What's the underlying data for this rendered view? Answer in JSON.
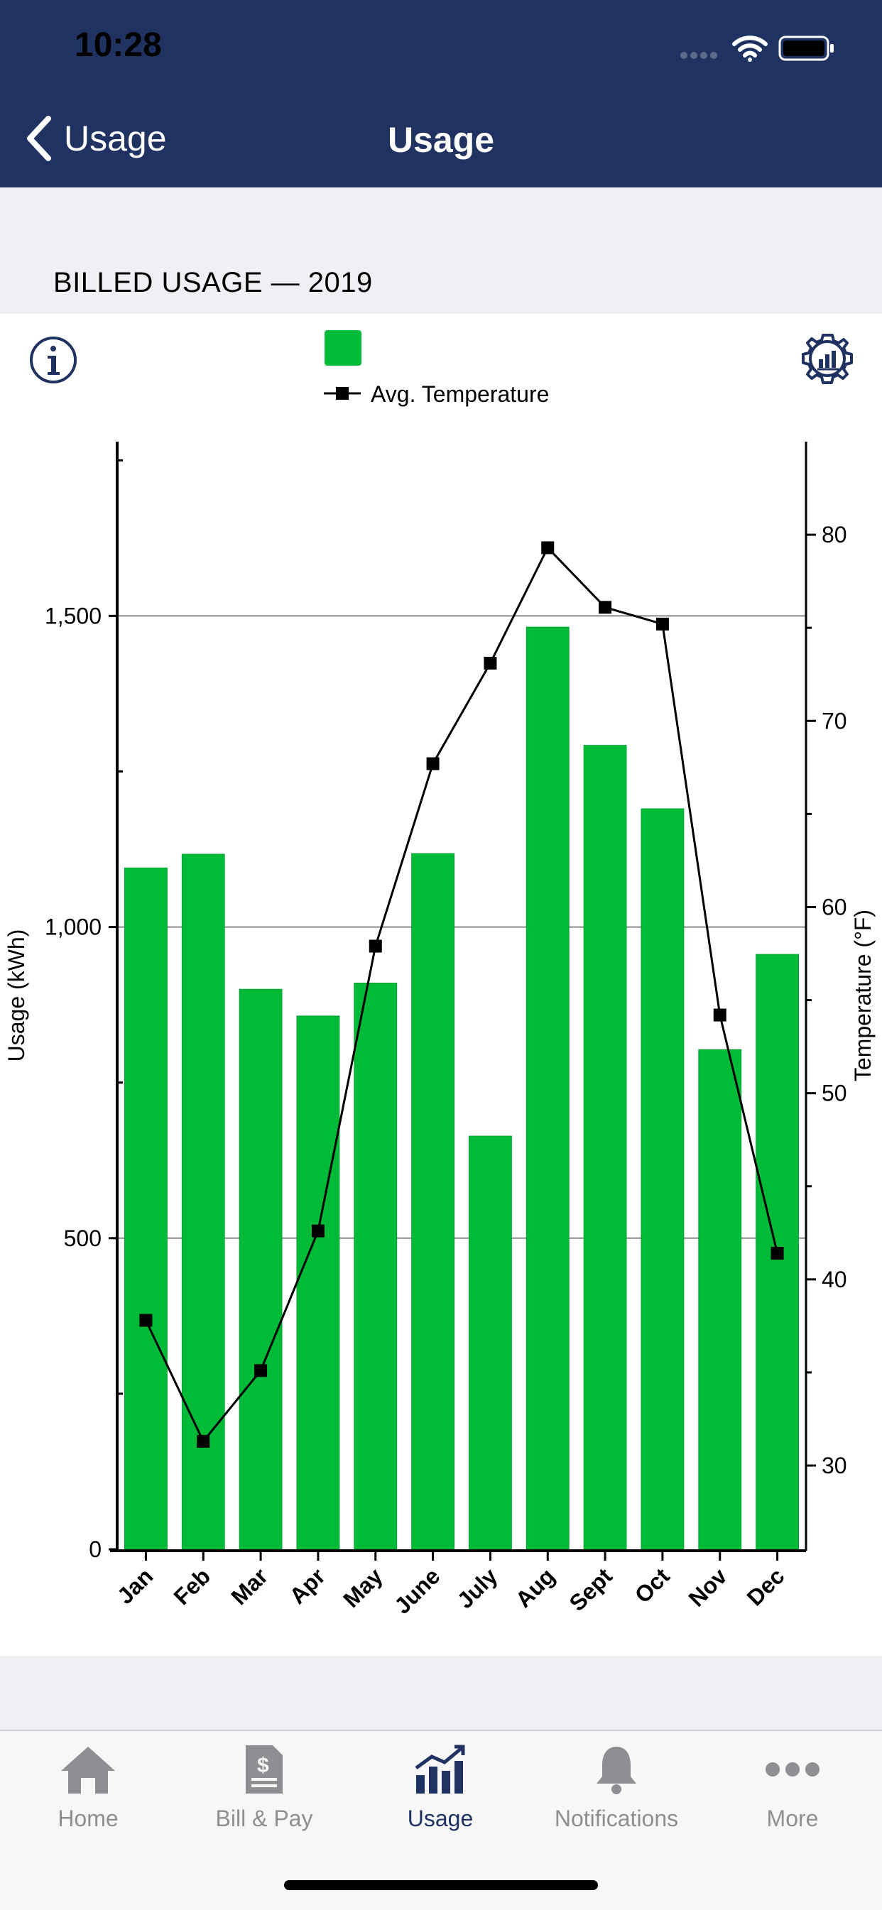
{
  "status_bar": {
    "time": "10:28"
  },
  "nav": {
    "back_label": "Usage",
    "title": "Usage"
  },
  "section": {
    "label": "BILLED USAGE — 2019"
  },
  "legend": {
    "swatch_label": "",
    "line_label": "Avg. Temperature"
  },
  "colors": {
    "header": "#1f3262",
    "bar": "#00bb38",
    "active_tab": "#1f3262",
    "inactive_tab": "#8e8e93"
  },
  "chart_data": {
    "type": "bar",
    "categories": [
      "Jan",
      "Feb",
      "Mar",
      "Apr",
      "May",
      "June",
      "July",
      "Aug",
      "Sept",
      "Oct",
      "Nov",
      "Dec"
    ],
    "series": [
      {
        "type": "bar",
        "axis": "left",
        "values": [
          1095,
          1117,
          900,
          857,
          910,
          1118,
          664,
          1482,
          1292,
          1190,
          803,
          956
        ]
      },
      {
        "name": "Avg. Temperature",
        "type": "line",
        "axis": "right",
        "values": [
          37.8,
          31.3,
          35.1,
          42.6,
          57.9,
          67.7,
          73.1,
          79.3,
          76.1,
          75.2,
          54.2,
          41.4
        ]
      }
    ],
    "ylabel": "Usage (kWh)",
    "y2label": "Temperature (°F)",
    "ylim": [
      0,
      1780
    ],
    "y2lim": [
      25.5,
      85
    ],
    "yticks": [
      "0",
      "500",
      "1,000",
      "1,500"
    ],
    "y2ticks": [
      "30",
      "40",
      "50",
      "60",
      "70",
      "80"
    ],
    "grid": true,
    "legend": "top"
  },
  "tabs": [
    {
      "label": "Home",
      "icon": "home-icon"
    },
    {
      "label": "Bill & Pay",
      "icon": "bill-icon"
    },
    {
      "label": "Usage",
      "icon": "usage-chart-icon",
      "active": true
    },
    {
      "label": "Notifications",
      "icon": "bell-icon"
    },
    {
      "label": "More",
      "icon": "more-dots-icon"
    }
  ]
}
